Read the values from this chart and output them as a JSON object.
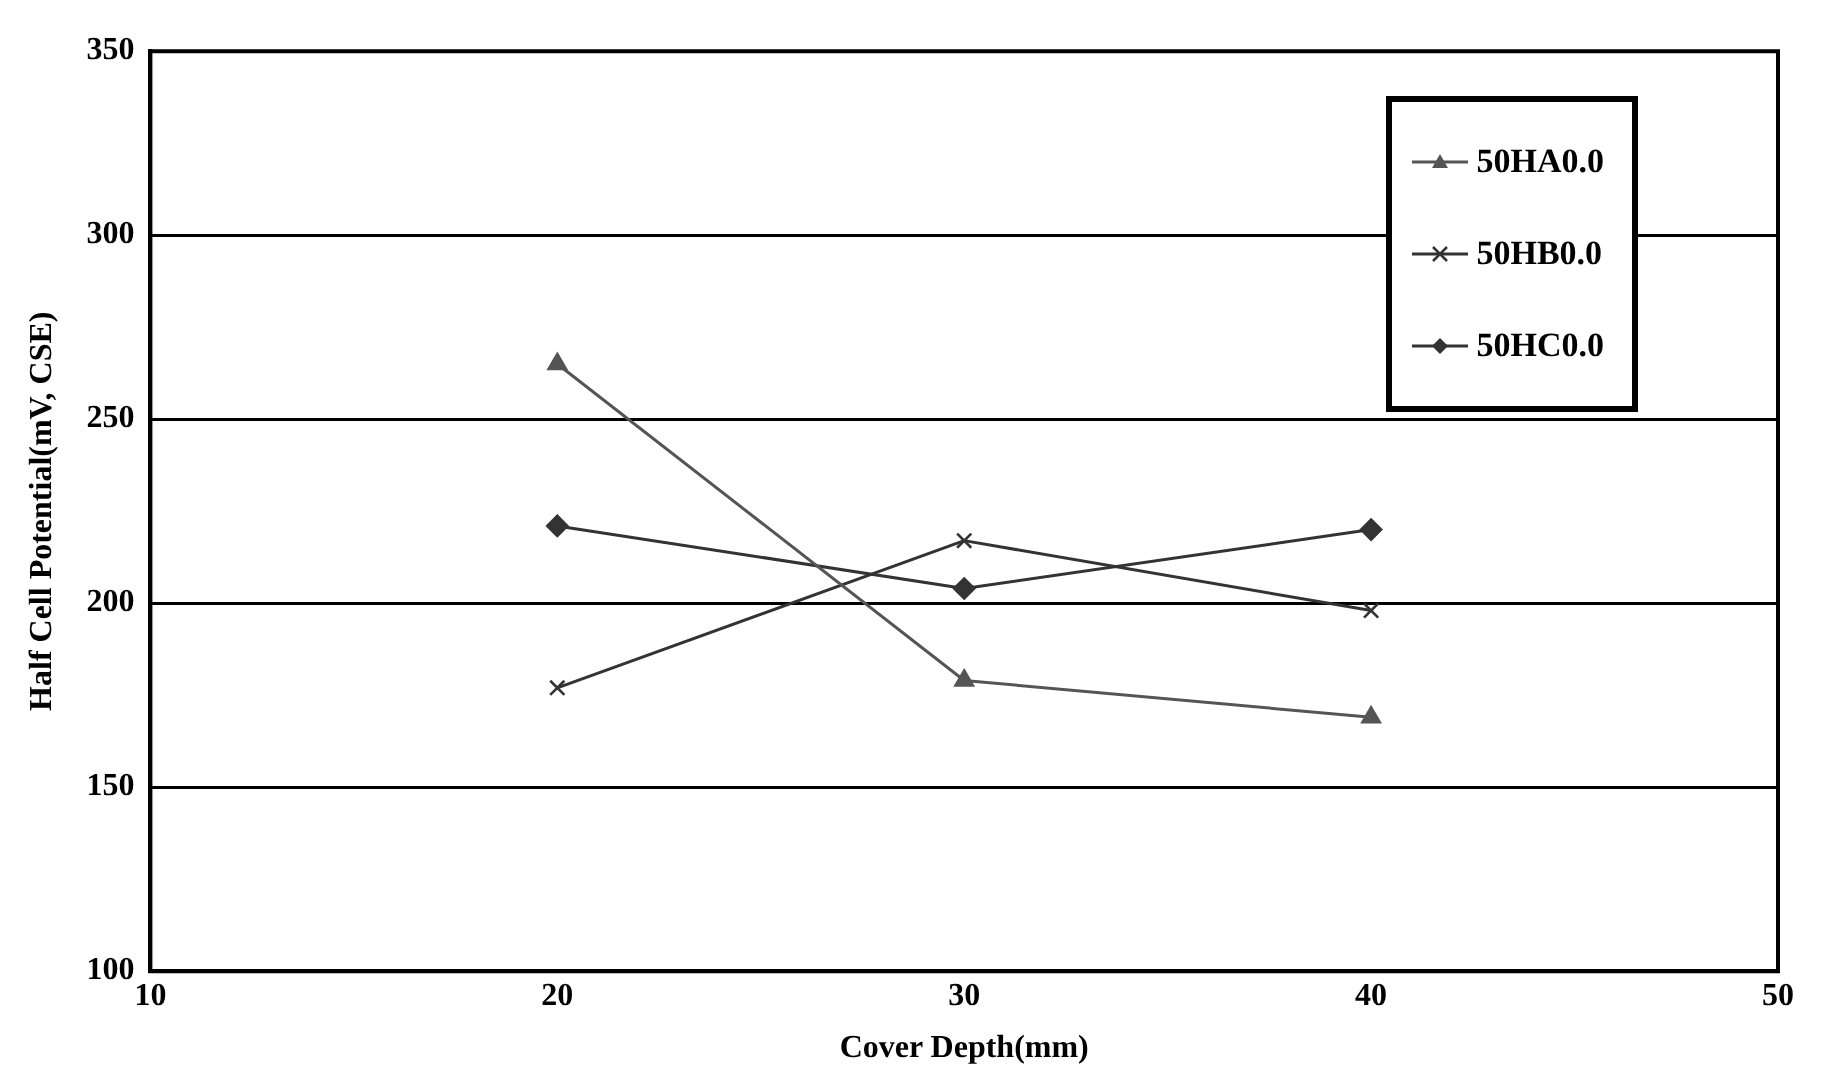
{
  "chart_data": {
    "type": "line",
    "xlabel": "Cover Depth(mm)",
    "ylabel": "Half Cell Potential(mV, CSE)",
    "x": [
      20,
      30,
      40
    ],
    "series": [
      {
        "name": "50HA0.0",
        "color": "#555555",
        "marker": "triangle",
        "values": [
          265,
          179,
          169
        ]
      },
      {
        "name": "50HB0.0",
        "color": "#333333",
        "marker": "cross",
        "values": [
          177,
          217,
          198
        ]
      },
      {
        "name": "50HC0.0",
        "color": "#333333",
        "marker": "diamond",
        "values": [
          221,
          204,
          220
        ]
      }
    ],
    "xlim": [
      10,
      50
    ],
    "xticks": [
      10,
      20,
      30,
      40,
      50
    ],
    "ylim": [
      100,
      350
    ],
    "yticks": [
      100,
      150,
      200,
      250,
      300,
      350
    ],
    "grid": "y",
    "legend": "top right"
  }
}
